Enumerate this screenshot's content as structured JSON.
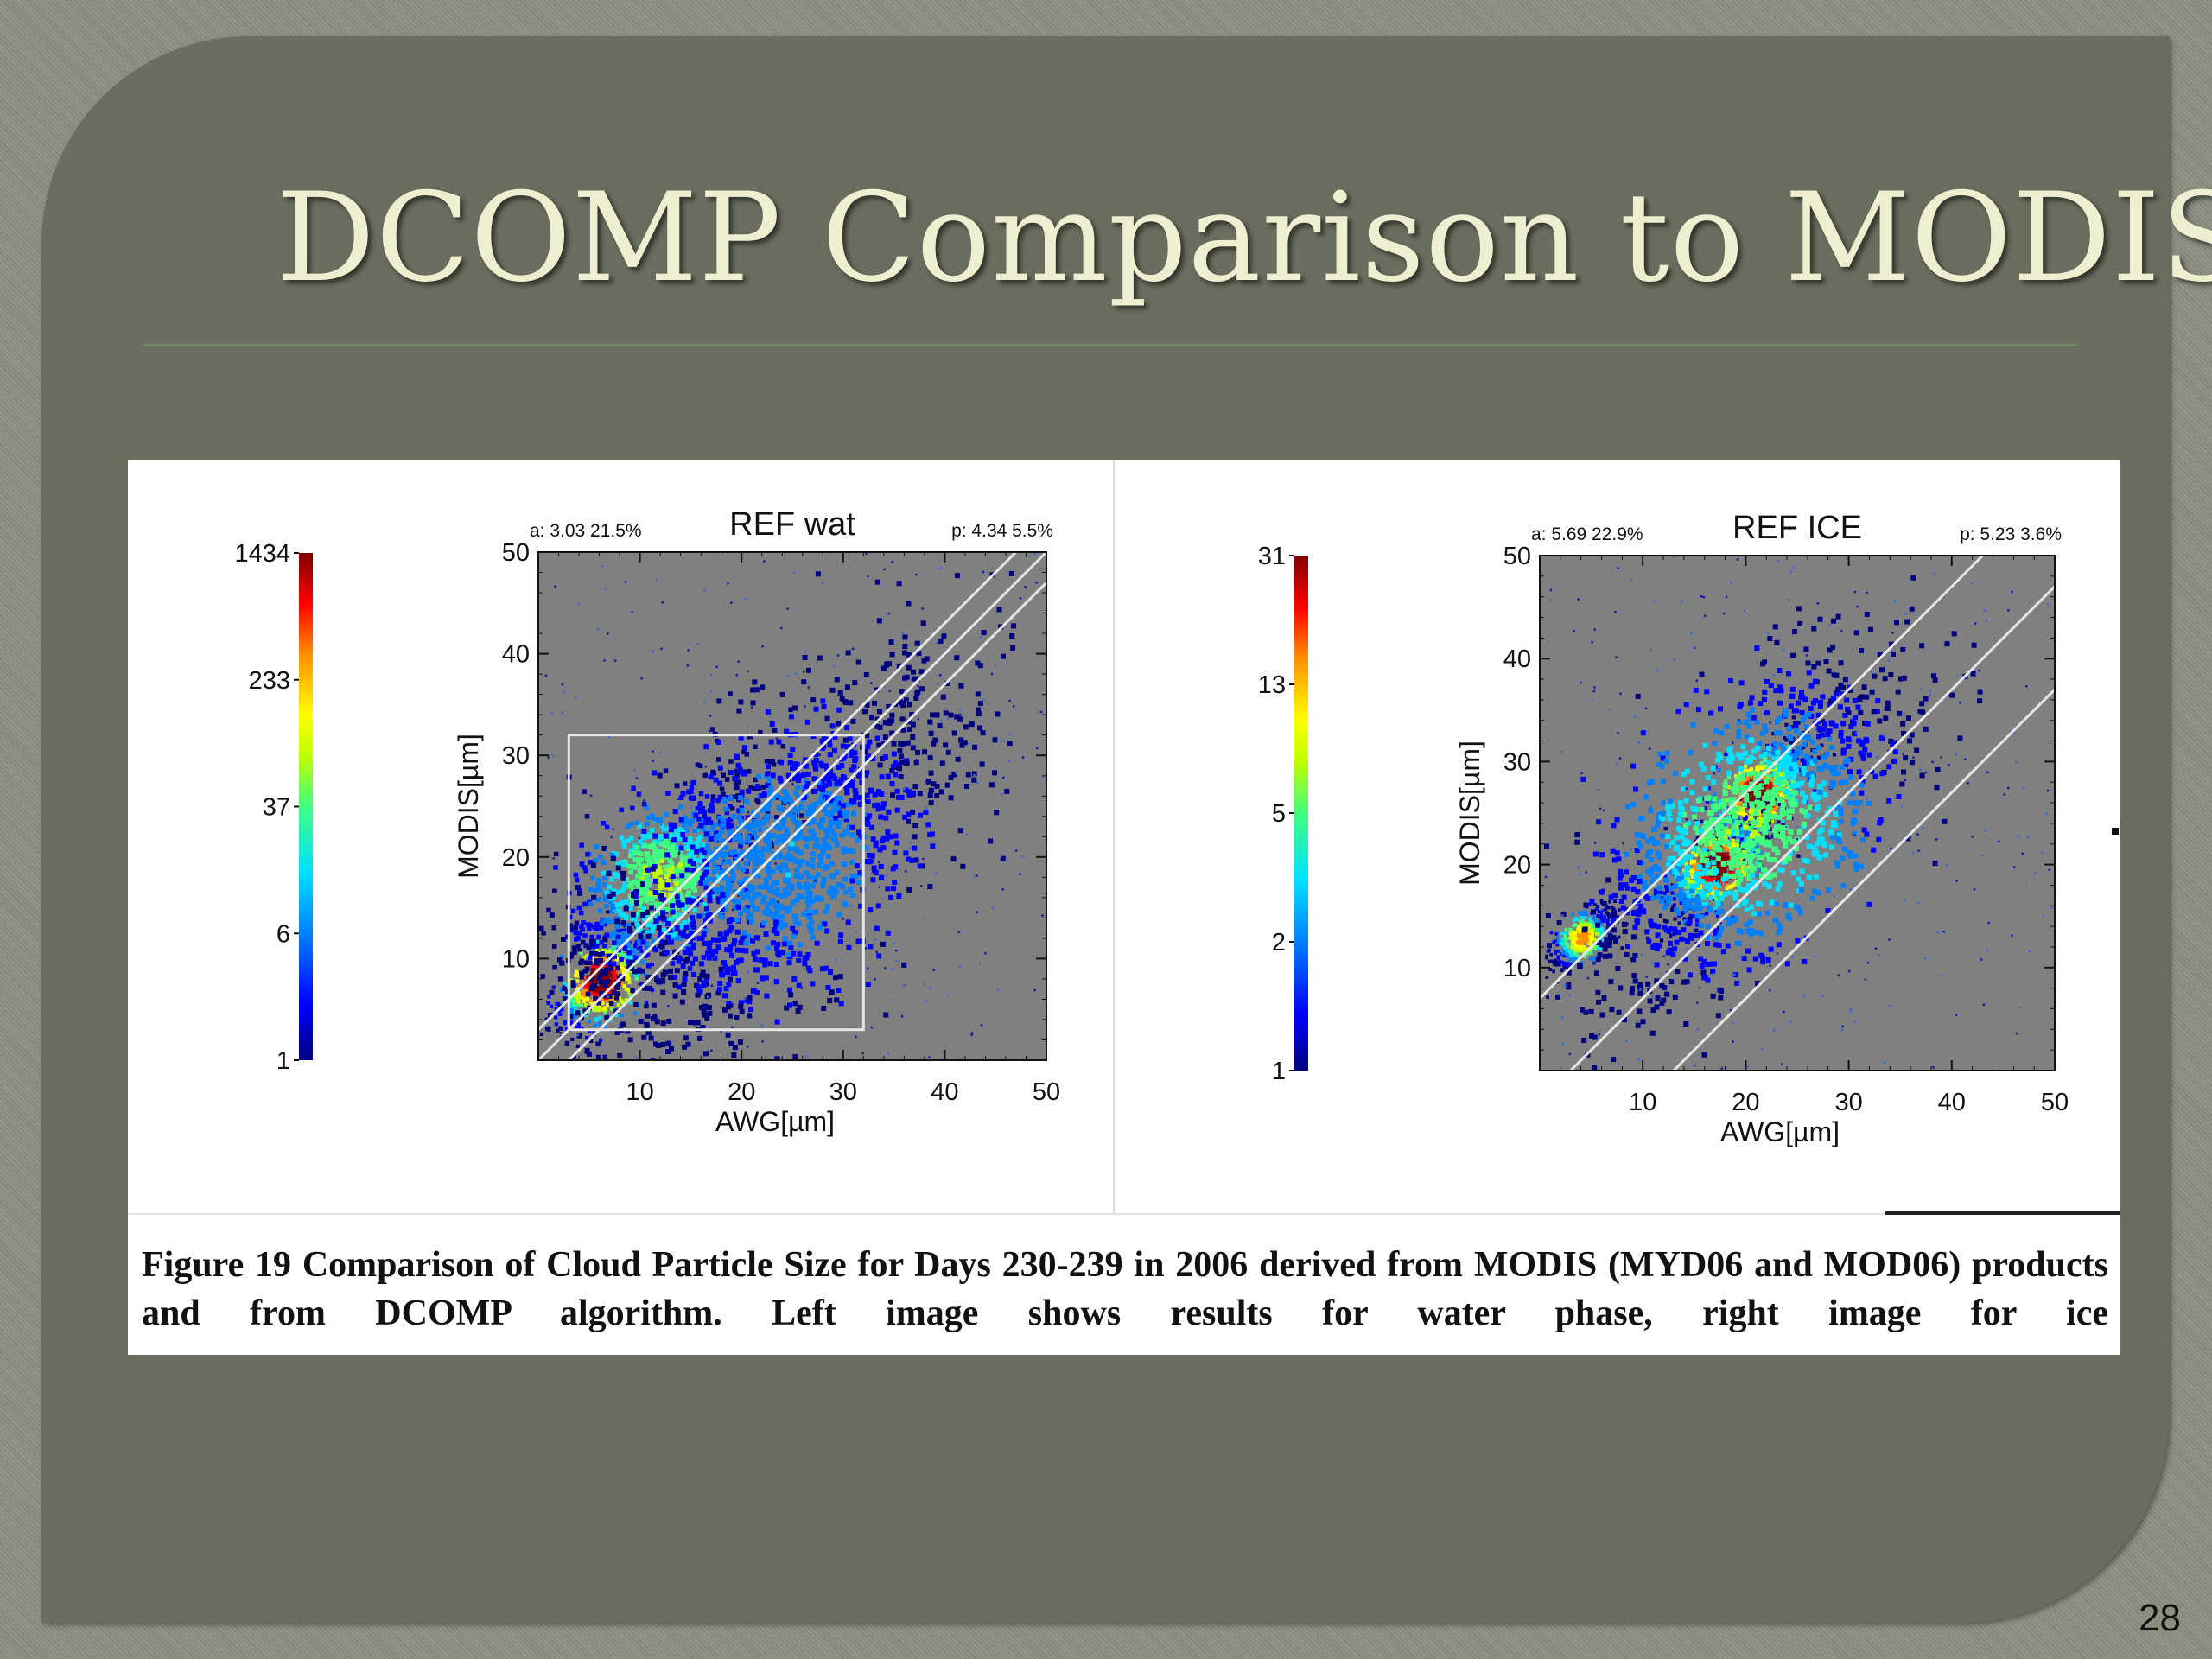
{
  "slide": {
    "title": "DCOMP Comparison to MODIS",
    "page_number": "28",
    "caption": "Figure 19 Comparison of Cloud Particle Size for Days 230-239 in 2006 derived from MODIS (MYD06 and MOD06) products and from DCOMP algorithm. Left image shows results for water phase, right image for ice"
  },
  "colors": {
    "slide_background": "#6a6e5e",
    "title_text": "#eeeed0",
    "plot_background": "#808080",
    "ref_lines": "#e6e6e6",
    "colormap": [
      "#000080",
      "#0000ff",
      "#0080ff",
      "#00e0ff",
      "#40ff80",
      "#c0ff00",
      "#ffff00",
      "#ff9000",
      "#ff0000",
      "#800000"
    ]
  },
  "chart_data": [
    {
      "type": "heatmap",
      "title": "REF wat",
      "stat_a": "a:  3.03  21.5%",
      "stat_p": "p:  4.34   5.5%",
      "xlabel": "AWG[µm]",
      "ylabel": "MODIS[µm]",
      "xlim": [
        0,
        50
      ],
      "ylim": [
        0,
        50
      ],
      "x_ticks": [
        "10",
        "20",
        "30",
        "40",
        "50"
      ],
      "y_ticks": [
        "10",
        "20",
        "30",
        "40",
        "50"
      ],
      "colorbar": {
        "scale": "log",
        "min": 1,
        "max": 1434,
        "tick_labels": [
          "1434",
          "233",
          "37",
          "6",
          "1"
        ]
      },
      "reference_lines": [
        {
          "slope": 1,
          "intercept": 3
        },
        {
          "slope": 1,
          "intercept": 0
        },
        {
          "slope": 1,
          "intercept": -3
        }
      ],
      "selection_box": {
        "x": [
          3,
          32
        ],
        "y": [
          3,
          32
        ]
      },
      "density_clusters": [
        {
          "x": 6,
          "y": 8,
          "spread": 2.5,
          "peak": 1434
        },
        {
          "x": 12,
          "y": 18,
          "spread": 5,
          "peak": 37
        },
        {
          "x": 24,
          "y": 20,
          "spread": 9,
          "peak": 6
        }
      ]
    },
    {
      "type": "heatmap",
      "title": "REF ICE",
      "stat_a": "a:  5.69  22.9%",
      "stat_p": "p:  5.23   3.6%",
      "xlabel": "AWG[µm]",
      "ylabel": "MODIS[µm]",
      "xlim": [
        0,
        50
      ],
      "ylim": [
        0,
        50
      ],
      "x_ticks": [
        "10",
        "20",
        "30",
        "40",
        "50"
      ],
      "y_ticks": [
        "10",
        "20",
        "30",
        "40",
        "50"
      ],
      "colorbar": {
        "scale": "log",
        "min": 1,
        "max": 31,
        "tick_labels": [
          "31",
          "13",
          "5",
          "2",
          "1"
        ]
      },
      "reference_lines": [
        {
          "slope": 1,
          "intercept": 7
        },
        {
          "slope": 1,
          "intercept": -3
        },
        {
          "slope": 1,
          "intercept": -13
        }
      ],
      "density_clusters": [
        {
          "x": 21,
          "y": 27,
          "spread": 2.5,
          "peak": 31
        },
        {
          "x": 17,
          "y": 20,
          "spread": 2.5,
          "peak": 31
        },
        {
          "x": 4,
          "y": 13,
          "spread": 1.5,
          "peak": 13
        },
        {
          "x": 20,
          "y": 24,
          "spread": 8,
          "peak": 5
        }
      ]
    }
  ]
}
